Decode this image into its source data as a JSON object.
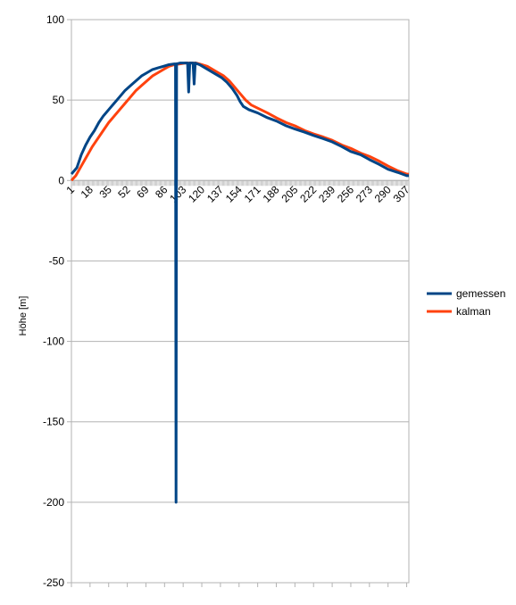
{
  "chart_data": {
    "type": "line",
    "title": "",
    "xlabel": "",
    "ylabel": "Höhe [m]",
    "ylim": [
      -250,
      100
    ],
    "yticks": [
      100,
      50,
      0,
      -50,
      -100,
      -150,
      -200,
      -250
    ],
    "xlim": [
      1,
      309
    ],
    "xticks": [
      1,
      18,
      35,
      52,
      69,
      86,
      103,
      120,
      137,
      154,
      171,
      188,
      205,
      222,
      239,
      256,
      273,
      290,
      307
    ],
    "grid": true,
    "legend_position": "right",
    "series": [
      {
        "name": "gemessen",
        "color": "#004586",
        "points": [
          [
            1,
            4
          ],
          [
            6,
            8
          ],
          [
            10,
            16
          ],
          [
            14,
            22
          ],
          [
            18,
            27
          ],
          [
            22,
            31
          ],
          [
            26,
            36
          ],
          [
            30,
            40
          ],
          [
            35,
            44
          ],
          [
            40,
            48
          ],
          [
            45,
            52
          ],
          [
            50,
            56
          ],
          [
            55,
            59
          ],
          [
            60,
            62
          ],
          [
            65,
            65
          ],
          [
            70,
            67
          ],
          [
            75,
            69
          ],
          [
            80,
            70
          ],
          [
            85,
            71
          ],
          [
            90,
            72
          ],
          [
            95,
            72.5
          ],
          [
            96,
            72.5
          ],
          [
            96.5,
            -200
          ],
          [
            97,
            72.5
          ],
          [
            100,
            73
          ],
          [
            105,
            73
          ],
          [
            107,
            73
          ],
          [
            108,
            55
          ],
          [
            109,
            73
          ],
          [
            112,
            73
          ],
          [
            113,
            60
          ],
          [
            114,
            73
          ],
          [
            118,
            72
          ],
          [
            123,
            70
          ],
          [
            128,
            68
          ],
          [
            133,
            66
          ],
          [
            138,
            64
          ],
          [
            143,
            61
          ],
          [
            148,
            57
          ],
          [
            152,
            53
          ],
          [
            155,
            49
          ],
          [
            158,
            46
          ],
          [
            163,
            44
          ],
          [
            171,
            42
          ],
          [
            180,
            39
          ],
          [
            188,
            37
          ],
          [
            197,
            34
          ],
          [
            205,
            32
          ],
          [
            214,
            30
          ],
          [
            222,
            28
          ],
          [
            231,
            26
          ],
          [
            239,
            24
          ],
          [
            248,
            21
          ],
          [
            256,
            18
          ],
          [
            265,
            16
          ],
          [
            273,
            13
          ],
          [
            282,
            10
          ],
          [
            290,
            7
          ],
          [
            299,
            5
          ],
          [
            307,
            3
          ],
          [
            309,
            3
          ]
        ]
      },
      {
        "name": "kalman",
        "color": "#ff420e",
        "points": [
          [
            1,
            0
          ],
          [
            5,
            3
          ],
          [
            10,
            9
          ],
          [
            15,
            15
          ],
          [
            20,
            21
          ],
          [
            25,
            26
          ],
          [
            30,
            31
          ],
          [
            35,
            36
          ],
          [
            40,
            40
          ],
          [
            45,
            44
          ],
          [
            50,
            48
          ],
          [
            55,
            52
          ],
          [
            60,
            56
          ],
          [
            65,
            59
          ],
          [
            70,
            62
          ],
          [
            75,
            65
          ],
          [
            80,
            67
          ],
          [
            85,
            69
          ],
          [
            90,
            71
          ],
          [
            95,
            72
          ],
          [
            100,
            72.5
          ],
          [
            105,
            73
          ],
          [
            110,
            73
          ],
          [
            115,
            73
          ],
          [
            120,
            72
          ],
          [
            125,
            71
          ],
          [
            130,
            69
          ],
          [
            135,
            67
          ],
          [
            140,
            65
          ],
          [
            145,
            62
          ],
          [
            150,
            58
          ],
          [
            155,
            54
          ],
          [
            160,
            50
          ],
          [
            165,
            47
          ],
          [
            171,
            45
          ],
          [
            180,
            42
          ],
          [
            188,
            39
          ],
          [
            197,
            36
          ],
          [
            205,
            34
          ],
          [
            214,
            31
          ],
          [
            222,
            29
          ],
          [
            231,
            27
          ],
          [
            239,
            25
          ],
          [
            248,
            22
          ],
          [
            256,
            20
          ],
          [
            265,
            17
          ],
          [
            273,
            15
          ],
          [
            282,
            12
          ],
          [
            290,
            9
          ],
          [
            299,
            6
          ],
          [
            307,
            4
          ],
          [
            309,
            4
          ]
        ]
      }
    ]
  }
}
